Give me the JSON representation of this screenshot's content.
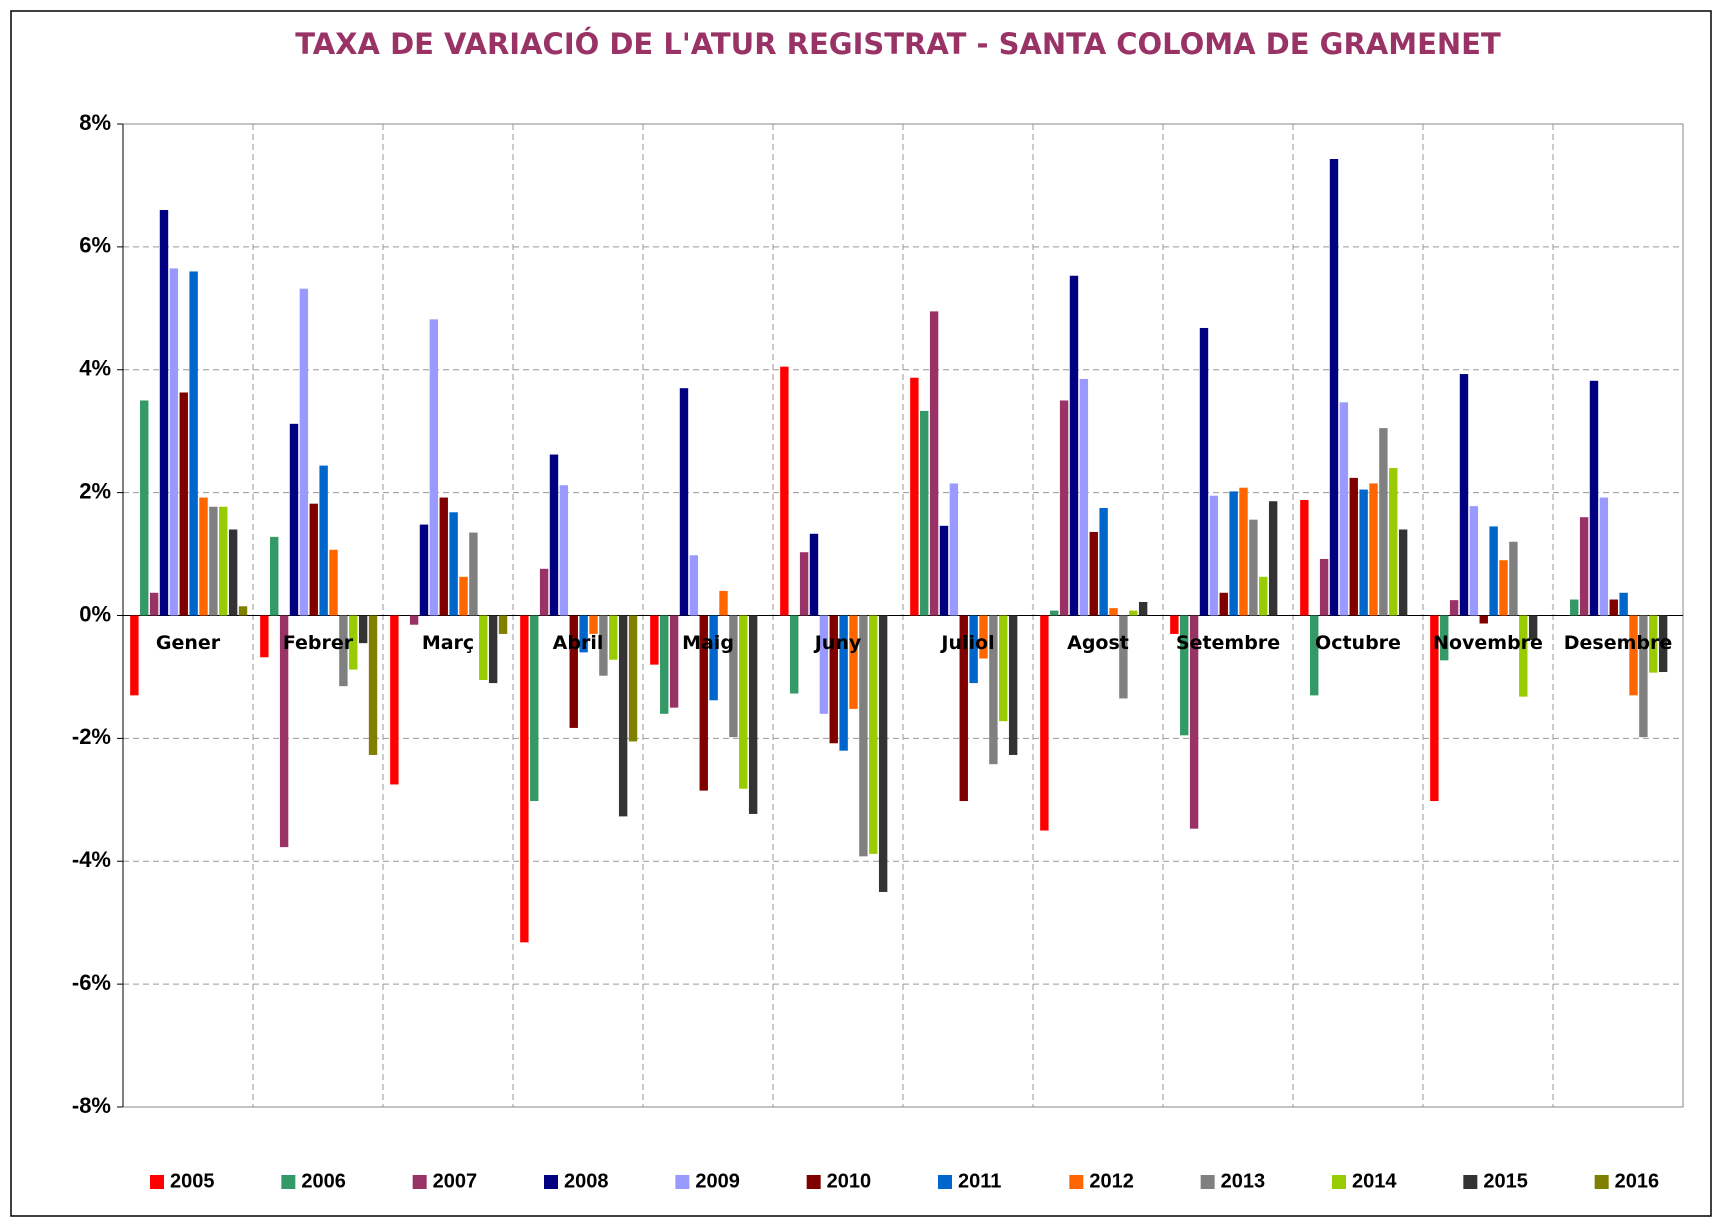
{
  "chart_data": {
    "type": "bar",
    "title": "TAXA DE VARIACIÓ DE L'ATUR REGISTRAT - SANTA COLOMA DE GRAMENET",
    "categories": [
      "Gener",
      "Febrer",
      "Març",
      "Abril",
      "Maig",
      "Juny",
      "Juliol",
      "Agost",
      "Setembre",
      "Octubre",
      "Novembre",
      "Desembre"
    ],
    "series": [
      {
        "name": "2005",
        "color": "#ff0000",
        "values": [
          -1.3,
          -0.68,
          -2.75,
          -5.32,
          -0.8,
          4.05,
          3.87,
          -3.5,
          -0.3,
          1.88,
          -3.02,
          null
        ]
      },
      {
        "name": "2006",
        "color": "#339966",
        "values": [
          3.5,
          1.28,
          null,
          -3.02,
          -1.6,
          -1.27,
          3.33,
          0.08,
          -1.95,
          -1.3,
          -0.73,
          0.26
        ]
      },
      {
        "name": "2007",
        "color": "#993366",
        "values": [
          0.37,
          -3.77,
          -0.15,
          0.76,
          -1.5,
          1.03,
          4.95,
          3.5,
          -3.47,
          0.92,
          0.25,
          1.6
        ]
      },
      {
        "name": "2008",
        "color": "#000080",
        "values": [
          6.6,
          3.12,
          1.48,
          2.62,
          3.7,
          1.33,
          1.46,
          5.53,
          4.68,
          7.43,
          3.93,
          3.82
        ]
      },
      {
        "name": "2009",
        "color": "#9999ff",
        "values": [
          5.65,
          5.32,
          4.82,
          2.12,
          0.98,
          -1.6,
          2.15,
          3.85,
          1.95,
          3.47,
          1.78,
          1.92
        ]
      },
      {
        "name": "2010",
        "color": "#800000",
        "values": [
          3.63,
          1.82,
          1.92,
          -1.83,
          -2.85,
          -2.08,
          -3.02,
          1.36,
          0.37,
          2.24,
          -0.13,
          0.26
        ]
      },
      {
        "name": "2011",
        "color": "#0066cc",
        "values": [
          5.6,
          2.44,
          1.68,
          -0.6,
          -1.38,
          -2.2,
          -1.1,
          1.75,
          2.02,
          2.05,
          1.45,
          0.37
        ]
      },
      {
        "name": "2012",
        "color": "#ff6600",
        "values": [
          1.92,
          1.07,
          0.63,
          -0.3,
          0.4,
          -1.52,
          -0.7,
          0.12,
          2.08,
          2.15,
          0.9,
          -1.3
        ]
      },
      {
        "name": "2013",
        "color": "#808080",
        "values": [
          1.77,
          -1.15,
          1.35,
          -0.98,
          -1.98,
          -3.92,
          -2.42,
          -1.35,
          1.56,
          3.05,
          1.2,
          -1.98
        ]
      },
      {
        "name": "2014",
        "color": "#99cc00",
        "values": [
          1.77,
          -0.88,
          -1.05,
          -0.72,
          -2.82,
          -3.88,
          -1.72,
          0.08,
          0.63,
          2.4,
          -1.32,
          -0.93
        ]
      },
      {
        "name": "2015",
        "color": "#333333",
        "values": [
          1.4,
          -0.45,
          -1.1,
          -3.27,
          -3.23,
          -4.5,
          -2.27,
          0.22,
          1.86,
          1.4,
          -0.4,
          -0.92
        ]
      },
      {
        "name": "2016",
        "color": "#808000",
        "values": [
          0.15,
          -2.27,
          -0.3,
          -2.05,
          null,
          null,
          null,
          null,
          null,
          null,
          null,
          null
        ]
      }
    ],
    "ylim": [
      -8,
      8
    ],
    "yticks": [
      {
        "value": -8,
        "label": "-8%"
      },
      {
        "value": -6,
        "label": "-6%"
      },
      {
        "value": -4,
        "label": "-4%"
      },
      {
        "value": -2,
        "label": "-2%"
      },
      {
        "value": 0,
        "label": "0%"
      },
      {
        "value": 2,
        "label": "2%"
      },
      {
        "value": 4,
        "label": "4%"
      },
      {
        "value": 6,
        "label": "6%"
      },
      {
        "value": 8,
        "label": "8%"
      }
    ],
    "grid": true,
    "legend": "bottom"
  }
}
